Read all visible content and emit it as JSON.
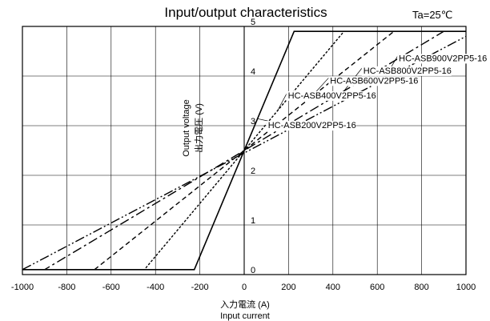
{
  "chart_data": {
    "type": "line",
    "title": "Input/output characteristics",
    "condition": "Ta=25℃",
    "xlabel_jp": "入力電流 (A)",
    "xlabel_en": "Input current",
    "ylabel_en": "Output voltage",
    "ylabel_jp": "出力電圧 (V)",
    "xlim": [
      -1000,
      1000
    ],
    "ylim": [
      0,
      5
    ],
    "x_ticks": [
      "-1000",
      "-800",
      "-600",
      "-400",
      "-200",
      "0",
      "200",
      "400",
      "600",
      "800",
      "1000"
    ],
    "y_ticks": [
      "0",
      "1",
      "2",
      "3",
      "4",
      "5"
    ],
    "grid": true,
    "series": [
      {
        "name": "HC-ASB200V2PP5-16",
        "style": "solid",
        "points": [
          [
            -1000,
            0.1
          ],
          [
            -225,
            0.1
          ],
          [
            225,
            4.9
          ],
          [
            1000,
            4.9
          ]
        ]
      },
      {
        "name": "HC-ASB400V2PP5-16",
        "style": "dotted",
        "points": [
          [
            -1000,
            0.1
          ],
          [
            -450,
            0.1
          ],
          [
            450,
            4.9
          ],
          [
            1000,
            4.9
          ]
        ]
      },
      {
        "name": "HC-ASB600V2PP5-16",
        "style": "dashed",
        "points": [
          [
            -1000,
            0.1
          ],
          [
            -675,
            0.1
          ],
          [
            675,
            4.9
          ],
          [
            1000,
            4.9
          ]
        ]
      },
      {
        "name": "HC-ASB800V2PP5-16",
        "style": "dashdot",
        "points": [
          [
            -1000,
            0.1
          ],
          [
            -900,
            0.1
          ],
          [
            900,
            4.9
          ],
          [
            1000,
            4.9
          ]
        ]
      },
      {
        "name": "HC-ASB900V2PP5-16",
        "style": "dashdotdot",
        "points": [
          [
            -1000,
            0.1
          ],
          [
            1000,
            4.8
          ]
        ]
      }
    ],
    "annotations": [
      {
        "series": 0,
        "label": "HC-ASB200V2PP5-16",
        "at": [
          100,
          2.95
        ]
      },
      {
        "series": 1,
        "label": "HC-ASB400V2PP5-16",
        "at": [
          190,
          3.55
        ]
      },
      {
        "series": 2,
        "label": "HC-ASB600V2PP5-16",
        "at": [
          380,
          3.85
        ]
      },
      {
        "series": 3,
        "label": "HC-ASB800V2PP5-16",
        "at": [
          530,
          4.05
        ]
      },
      {
        "series": 4,
        "label": "HC-ASB900V2PP5-16",
        "at": [
          690,
          4.3
        ]
      }
    ]
  }
}
